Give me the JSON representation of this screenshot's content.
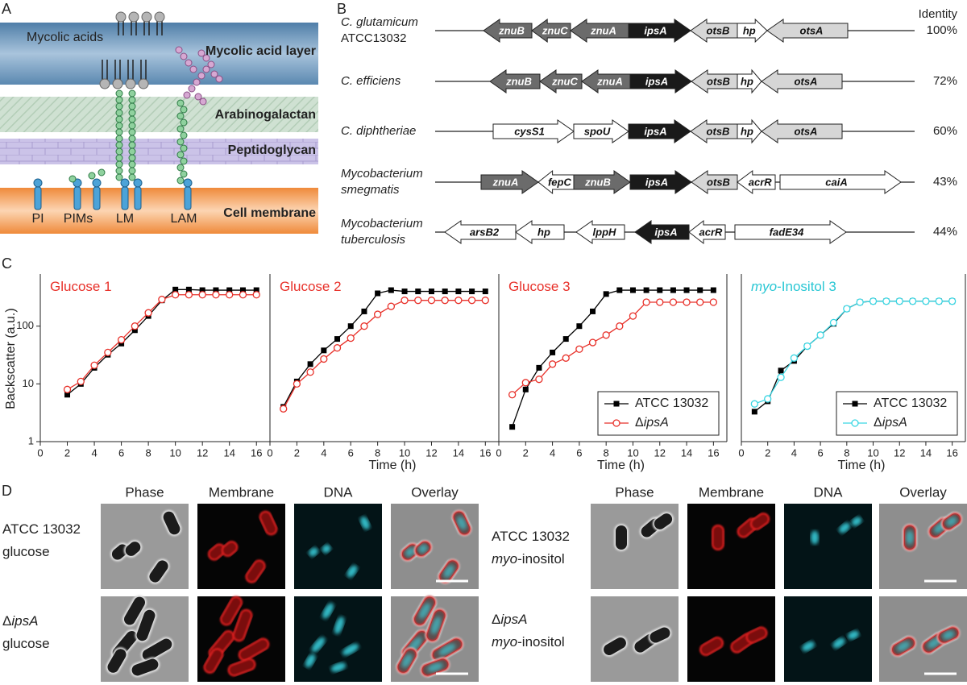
{
  "panel_a": {
    "label": "A",
    "mycolic_acids": "Mycolic acids",
    "layers": [
      "Mycolic acid layer",
      "Arabinogalactan",
      "Peptidoglycan",
      "Cell membrane"
    ],
    "lipids": [
      "PI",
      "PIMs",
      "LM",
      "LAM"
    ]
  },
  "panel_b": {
    "label": "B",
    "identity_header": "Identity",
    "rows": [
      {
        "organism": [
          [
            {
              "text": "C. glutamicum",
              "italic": true
            }
          ],
          [
            {
              "text": "ATCC13032"
            }
          ]
        ],
        "identity": "100%",
        "genes": [
          {
            "name": "znuB",
            "direction": "left",
            "color": "#6b6b6b"
          },
          {
            "name": "znuC",
            "direction": "left",
            "color": "#6b6b6b"
          },
          {
            "name": "znuA",
            "direction": "left",
            "color": "#6b6b6b"
          },
          {
            "name": "ipsA",
            "direction": "right",
            "color": "#1a1a1a"
          },
          {
            "name": "otsB",
            "direction": "left",
            "color": "#d6d6d6"
          },
          {
            "name": "hp",
            "direction": "right",
            "color": "#ffffff"
          },
          {
            "name": "otsA",
            "direction": "left",
            "color": "#d6d6d6"
          }
        ]
      },
      {
        "organism": [
          [
            {
              "text": "C. efficiens",
              "italic": true
            }
          ]
        ],
        "identity": "72%",
        "genes": [
          {
            "name": "znuB",
            "direction": "left",
            "color": "#6b6b6b"
          },
          {
            "name": "znuC",
            "direction": "left",
            "color": "#6b6b6b"
          },
          {
            "name": "znuA",
            "direction": "left",
            "color": "#6b6b6b"
          },
          {
            "name": "ipsA",
            "direction": "right",
            "color": "#1a1a1a"
          },
          {
            "name": "otsB",
            "direction": "left",
            "color": "#d6d6d6"
          },
          {
            "name": "hp",
            "direction": "right",
            "color": "#ffffff"
          },
          {
            "name": "otsA",
            "direction": "left",
            "color": "#d6d6d6"
          }
        ]
      },
      {
        "organism": [
          [
            {
              "text": "C. diphtheriae",
              "italic": true
            }
          ]
        ],
        "identity": "60%",
        "genes": [
          {
            "name": "cysS1",
            "direction": "right",
            "color": "#ffffff"
          },
          {
            "name": "spoU",
            "direction": "right",
            "color": "#ffffff"
          },
          {
            "name": "ipsA",
            "direction": "right",
            "color": "#1a1a1a"
          },
          {
            "name": "otsB",
            "direction": "left",
            "color": "#d6d6d6"
          },
          {
            "name": "hp",
            "direction": "right",
            "color": "#ffffff"
          },
          {
            "name": "otsA",
            "direction": "left",
            "color": "#d6d6d6"
          }
        ]
      },
      {
        "organism": [
          [
            {
              "text": "Mycobacterium",
              "italic": true
            }
          ],
          [
            {
              "text": "smegmatis",
              "italic": true
            }
          ]
        ],
        "identity": "43%",
        "genes": [
          {
            "name": "znuA",
            "direction": "right",
            "color": "#6b6b6b"
          },
          {
            "name": "fepC",
            "direction": "left",
            "color": "#ffffff"
          },
          {
            "name": "znuB",
            "direction": "right",
            "color": "#6b6b6b"
          },
          {
            "name": "ipsA",
            "direction": "right",
            "color": "#1a1a1a"
          },
          {
            "name": "otsB",
            "direction": "left",
            "color": "#d6d6d6"
          },
          {
            "name": "acrR",
            "direction": "left",
            "color": "#ffffff"
          },
          {
            "name": "caiA",
            "direction": "right",
            "color": "#ffffff"
          }
        ]
      },
      {
        "organism": [
          [
            {
              "text": "Mycobacterium",
              "italic": true
            }
          ],
          [
            {
              "text": "tuberculosis",
              "italic": true
            }
          ]
        ],
        "identity": "44%",
        "genes": [
          {
            "name": "arsB2",
            "direction": "left",
            "color": "#ffffff"
          },
          {
            "name": "hp",
            "direction": "left",
            "color": "#ffffff"
          },
          {
            "name": "lppH",
            "direction": "left",
            "color": "#ffffff"
          },
          {
            "name": "ipsA",
            "direction": "left",
            "color": "#1a1a1a"
          },
          {
            "name": "acrR",
            "direction": "left",
            "color": "#ffffff"
          },
          {
            "name": "fadE34",
            "direction": "right",
            "color": "#ffffff"
          }
        ]
      }
    ]
  },
  "panel_c_label": "C",
  "chart_data": [
    {
      "type": "line",
      "title": [
        {
          "text": "Glucose 1"
        }
      ],
      "title_color": "#e8312a",
      "ylabel": "Backscatter (a.u.)",
      "log_y": true,
      "x": [
        1,
        2,
        3,
        4,
        5,
        6,
        7,
        8,
        9,
        10,
        11,
        12,
        13,
        14,
        15,
        16
      ],
      "xlim": [
        0,
        17
      ],
      "xticks": [
        0,
        2,
        4,
        6,
        8,
        10,
        12,
        14,
        16
      ],
      "ylim": [
        1,
        800
      ],
      "yticks": [
        1,
        10,
        100
      ],
      "series": [
        {
          "color": "#000000",
          "marker": "square",
          "values": [
            null,
            6.5,
            10,
            19,
            32,
            50,
            85,
            150,
            280,
            430,
            430,
            420,
            420,
            420,
            420,
            420
          ]
        },
        {
          "color": "#e8312a",
          "marker": "open-circle",
          "values": [
            null,
            8,
            11,
            21,
            35,
            58,
            100,
            170,
            290,
            350,
            350,
            350,
            350,
            350,
            350,
            350
          ]
        }
      ]
    },
    {
      "type": "line",
      "title": [
        {
          "text": "Glucose 2"
        }
      ],
      "title_color": "#e8312a",
      "xlabel": "Time (h)",
      "log_y": true,
      "x": [
        1,
        2,
        3,
        4,
        5,
        6,
        7,
        8,
        9,
        10,
        11,
        12,
        13,
        14,
        15,
        16
      ],
      "xlim": [
        0,
        17
      ],
      "xticks": [
        0,
        2,
        4,
        6,
        8,
        10,
        12,
        14,
        16
      ],
      "ylim": [
        1,
        800
      ],
      "series": [
        {
          "color": "#000000",
          "marker": "square",
          "values": [
            4,
            11,
            22,
            38,
            60,
            100,
            180,
            370,
            420,
            400,
            400,
            400,
            400,
            400,
            400,
            400
          ]
        },
        {
          "color": "#e8312a",
          "marker": "open-circle",
          "values": [
            3.7,
            10,
            16,
            27,
            42,
            62,
            100,
            160,
            220,
            280,
            280,
            280,
            280,
            280,
            280,
            280
          ]
        }
      ]
    },
    {
      "type": "line",
      "title": [
        {
          "text": "Glucose 3"
        }
      ],
      "title_color": "#e8312a",
      "xlabel": "Time (h)",
      "log_y": true,
      "legend": "lower right",
      "x": [
        1,
        2,
        3,
        4,
        5,
        6,
        7,
        8,
        9,
        10,
        11,
        12,
        13,
        14,
        15,
        16
      ],
      "xlim": [
        0,
        17
      ],
      "xticks": [
        0,
        2,
        4,
        6,
        8,
        10,
        12,
        14,
        16
      ],
      "ylim": [
        1,
        800
      ],
      "series": [
        {
          "name": [
            {
              "text": "ATCC 13032"
            }
          ],
          "color": "#000000",
          "marker": "square",
          "values": [
            1.8,
            8,
            19,
            35,
            60,
            100,
            180,
            360,
            420,
            420,
            420,
            420,
            420,
            420,
            420,
            420
          ]
        },
        {
          "name": [
            {
              "text": "Δ"
            },
            {
              "text": "ipsA",
              "italic": true
            }
          ],
          "color": "#e8312a",
          "marker": "open-circle",
          "values": [
            6.5,
            10.5,
            12,
            22,
            28,
            40,
            52,
            70,
            100,
            150,
            260,
            260,
            260,
            260,
            260,
            260
          ]
        }
      ]
    },
    {
      "type": "line",
      "title": [
        {
          "text": "myo",
          "italic": true
        },
        {
          "text": "-Inositol 3"
        }
      ],
      "title_color": "#29c7d4",
      "xlabel": "Time (h)",
      "log_y": true,
      "legend": "lower right",
      "x": [
        1,
        2,
        3,
        4,
        5,
        6,
        7,
        8,
        9,
        10,
        11,
        12,
        13,
        14,
        15,
        16
      ],
      "xlim": [
        0,
        17
      ],
      "xticks": [
        0,
        2,
        4,
        6,
        8,
        10,
        12,
        14,
        16
      ],
      "ylim": [
        1,
        800
      ],
      "series": [
        {
          "name": [
            {
              "text": "ATCC 13032"
            }
          ],
          "color": "#000000",
          "marker": "square",
          "values": [
            3.3,
            5,
            17,
            25,
            45,
            70,
            110,
            200,
            260,
            270,
            270,
            270,
            270,
            270,
            270,
            270
          ]
        },
        {
          "name": [
            {
              "text": "Δ"
            },
            {
              "text": "ipsA",
              "italic": true
            }
          ],
          "color": "#3ad6e3",
          "marker": "open-circle",
          "values": [
            4.5,
            5.5,
            13,
            28,
            45,
            70,
            115,
            200,
            260,
            270,
            270,
            270,
            270,
            270,
            270,
            270
          ]
        }
      ]
    }
  ],
  "panel_d": {
    "label": "D",
    "groups": [
      {
        "channels": [
          "Phase",
          "Membrane",
          "DNA",
          "Overlay"
        ],
        "rows": [
          [
            [
              {
                "text": "ATCC 13032"
              }
            ],
            [
              {
                "text": "glucose"
              }
            ]
          ],
          [
            [
              {
                "text": "Δ"
              },
              {
                "text": "ipsA",
                "italic": true
              }
            ],
            [
              {
                "text": "glucose"
              }
            ]
          ]
        ]
      },
      {
        "channels": [
          "Phase",
          "Membrane",
          "DNA",
          "Overlay"
        ],
        "rows": [
          [
            [
              {
                "text": "ATCC 13032"
              }
            ],
            [
              {
                "text": "myo",
                "italic": true
              },
              {
                "text": "-inositol"
              }
            ]
          ],
          [
            [
              {
                "text": "Δ"
              },
              {
                "text": "ipsA",
                "italic": true
              }
            ],
            [
              {
                "text": "myo",
                "italic": true
              },
              {
                "text": "-inositol"
              }
            ]
          ]
        ]
      }
    ]
  }
}
